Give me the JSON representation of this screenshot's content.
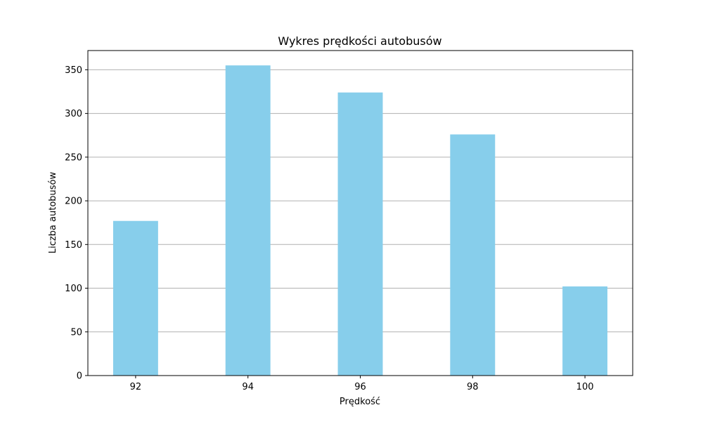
{
  "chart_data": {
    "type": "bar",
    "title": "Wykres prędkości autobusów",
    "xlabel": "Prędkość",
    "ylabel": "Liczba autobusów",
    "categories": [
      "92",
      "94",
      "96",
      "98",
      "100"
    ],
    "x": [
      92,
      94,
      96,
      98,
      100
    ],
    "values": [
      177,
      355,
      324,
      276,
      102
    ],
    "xlim": [
      91.15,
      100.85
    ],
    "ylim": [
      0,
      372
    ],
    "y_ticks": [
      0,
      50,
      100,
      150,
      200,
      250,
      300,
      350
    ],
    "x_ticks": [
      92,
      94,
      96,
      98,
      100
    ],
    "bar_width_units": 0.8,
    "grid": "y",
    "legend": "none",
    "colors": {
      "bar": "#87CEEB",
      "grid": "#b0b0b0",
      "axes": "#000000",
      "background": "#ffffff"
    }
  }
}
